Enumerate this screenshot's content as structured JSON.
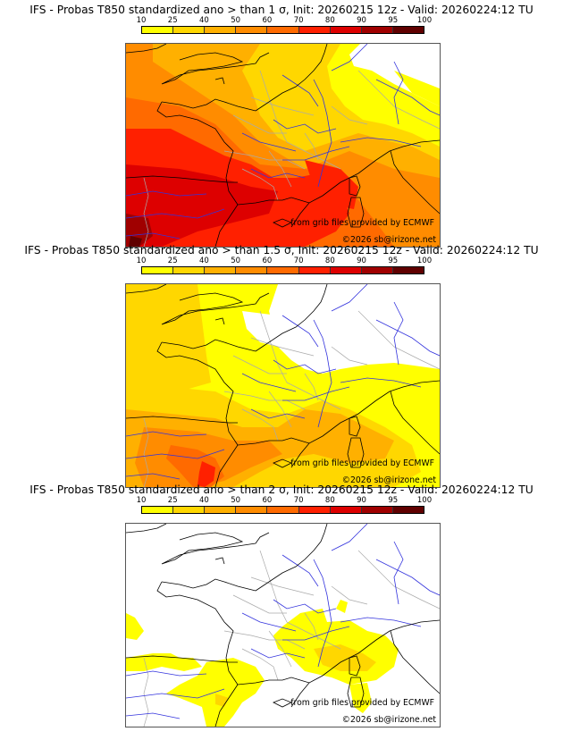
{
  "colorbar": {
    "ticks": [
      "10",
      "25",
      "40",
      "50",
      "60",
      "70",
      "80",
      "90",
      "95",
      "100"
    ],
    "colors": [
      "#ffff00",
      "#ffd700",
      "#ffb000",
      "#ff8c00",
      "#ff6a00",
      "#ff2000",
      "#dd0000",
      "#a00000",
      "#600000"
    ]
  },
  "panels": [
    {
      "title": "IFS - Probas T850  standardized ano > than 1 σ, Init: 20260215 12z - Valid: 20260224:12 TU",
      "threshold": "1 σ",
      "credit_source": "from grib files provided by ECMWF",
      "credit_copyright": "©2026 sb@irizone.net"
    },
    {
      "title": "IFS - Probas T850  standardized ano > than 1.5 σ, Init: 20260215 12z - Valid: 20260224:12 TU",
      "threshold": "1.5 σ",
      "credit_source": "from grib files provided by ECMWF",
      "credit_copyright": "©2026 sb@irizone.net"
    },
    {
      "title": "IFS - Probas T850  standardized ano > than 2 σ, Init: 20260215 12z - Valid: 20260224:12 TU",
      "threshold": "2 σ",
      "credit_source": "from grib files provided by ECMWF",
      "credit_copyright": "©2026 sb@irizone.net"
    }
  ],
  "map_layers": {
    "coastline_color": "#000000",
    "river_color": "#3333dd",
    "border_color": "#aaaaaa"
  }
}
